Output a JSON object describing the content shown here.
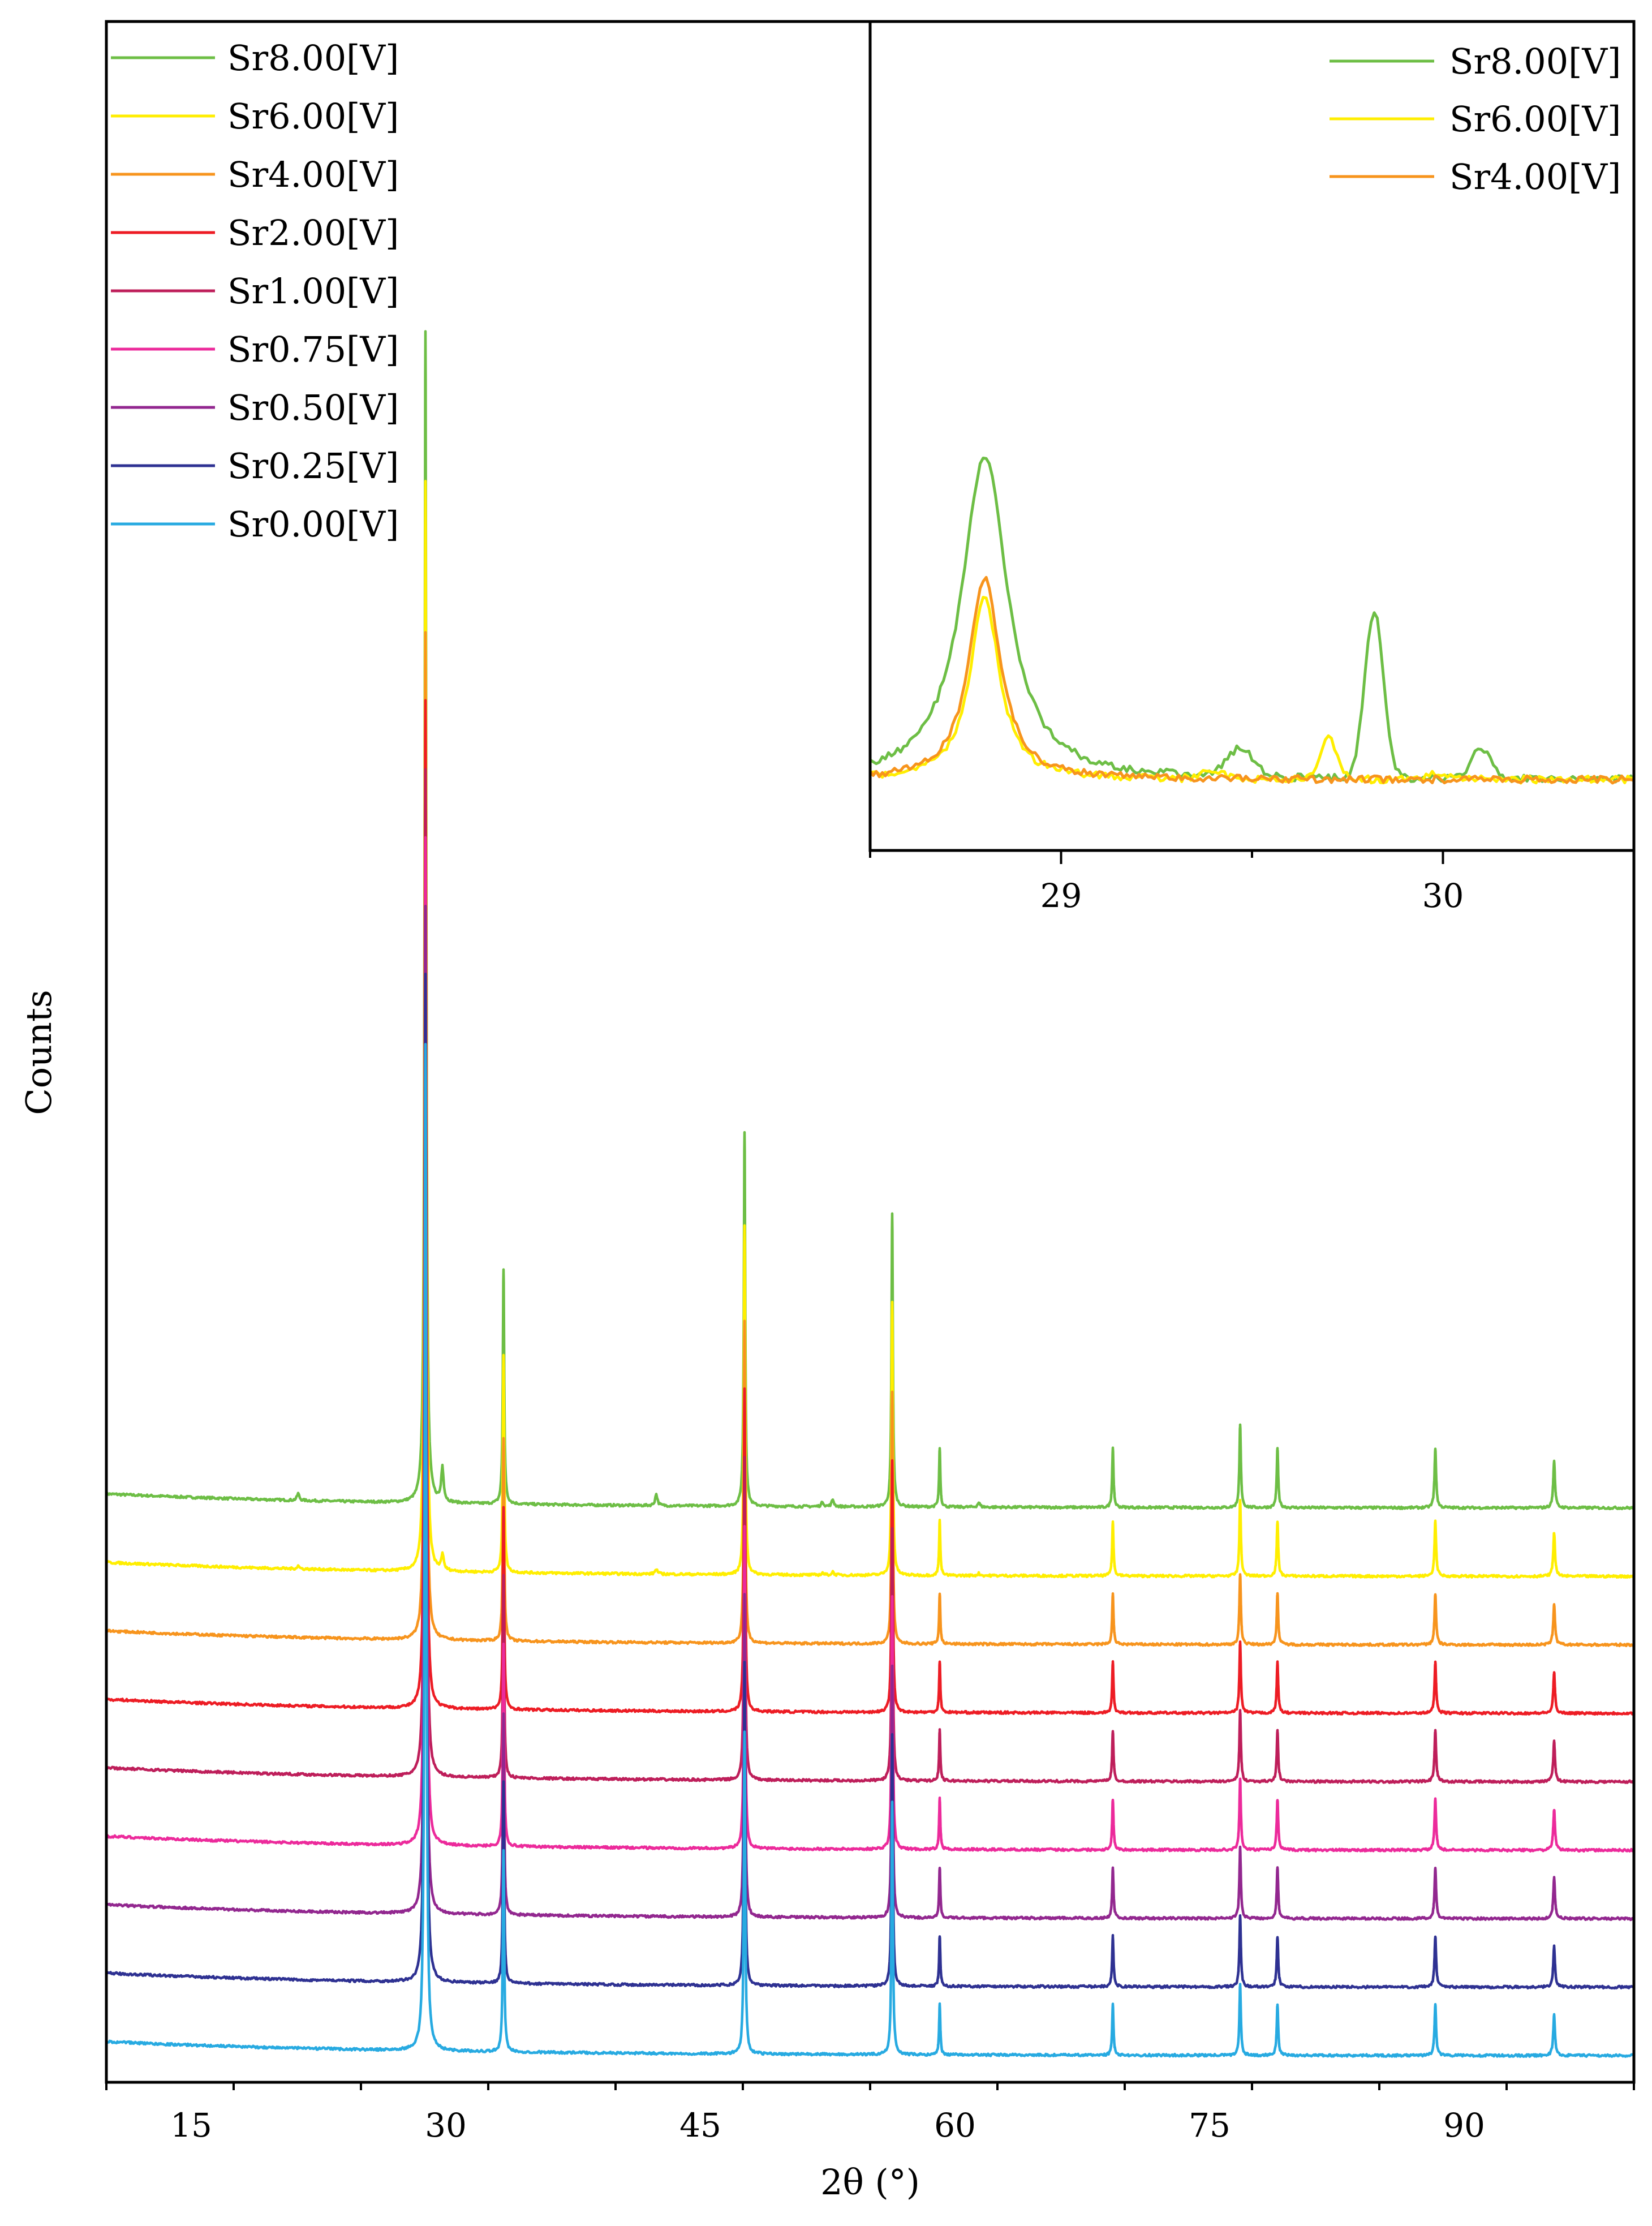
{
  "chart_data": [
    {
      "id": "main",
      "type": "line",
      "title": "",
      "xlabel": "2θ (°)",
      "ylabel": "Counts",
      "xlim": [
        10,
        100
      ],
      "x_ticks": [
        15,
        30,
        45,
        60,
        75,
        90
      ],
      "x_tick_labels": [
        "15",
        "30",
        "45",
        "60",
        "75",
        "90"
      ],
      "y_ticks_labeled": false,
      "grid": false,
      "legend_position": "top-left",
      "peak_positions": [
        28.8,
        33.4,
        47.6,
        56.3,
        59.1,
        69.3,
        76.8,
        79.0,
        88.3,
        95.3
      ],
      "peak_heights_relative": [
        1.0,
        0.2,
        0.32,
        0.25,
        0.05,
        0.05,
        0.07,
        0.05,
        0.05,
        0.04
      ],
      "impurity_peaks_Sr8": [
        21.3,
        29.8,
        42.4,
        52.2,
        52.8,
        61.4
      ],
      "series": [
        {
          "name": "Sr8.00[V]",
          "color": "#6DBE45",
          "offset_index": 8
        },
        {
          "name": "Sr6.00[V]",
          "color": "#FFEE00",
          "offset_index": 7
        },
        {
          "name": "Sr4.00[V]",
          "color": "#F7941D",
          "offset_index": 6
        },
        {
          "name": "Sr2.00[V]",
          "color": "#ED1C24",
          "offset_index": 5
        },
        {
          "name": "Sr1.00[V]",
          "color": "#BE1E5A",
          "offset_index": 4
        },
        {
          "name": "Sr0.75[V]",
          "color": "#EC2A9B",
          "offset_index": 3
        },
        {
          "name": "Sr0.50[V]",
          "color": "#92278F",
          "offset_index": 2
        },
        {
          "name": "Sr0.25[V]",
          "color": "#2E3192",
          "offset_index": 1
        },
        {
          "name": "Sr0.00[V]",
          "color": "#27AAE1",
          "offset_index": 0
        }
      ]
    },
    {
      "id": "inset",
      "type": "line",
      "title": "",
      "xlabel": "",
      "ylabel": "",
      "xlim": [
        28.5,
        30.5
      ],
      "x_ticks": [
        29,
        30
      ],
      "x_tick_labels": [
        "29",
        "30"
      ],
      "legend_position": "top-right",
      "series": [
        {
          "name": "Sr8.00[V]",
          "color": "#6DBE45"
        },
        {
          "name": "Sr6.00[V]",
          "color": "#FFEE00"
        },
        {
          "name": "Sr4.00[V]",
          "color": "#F7941D"
        }
      ]
    }
  ]
}
